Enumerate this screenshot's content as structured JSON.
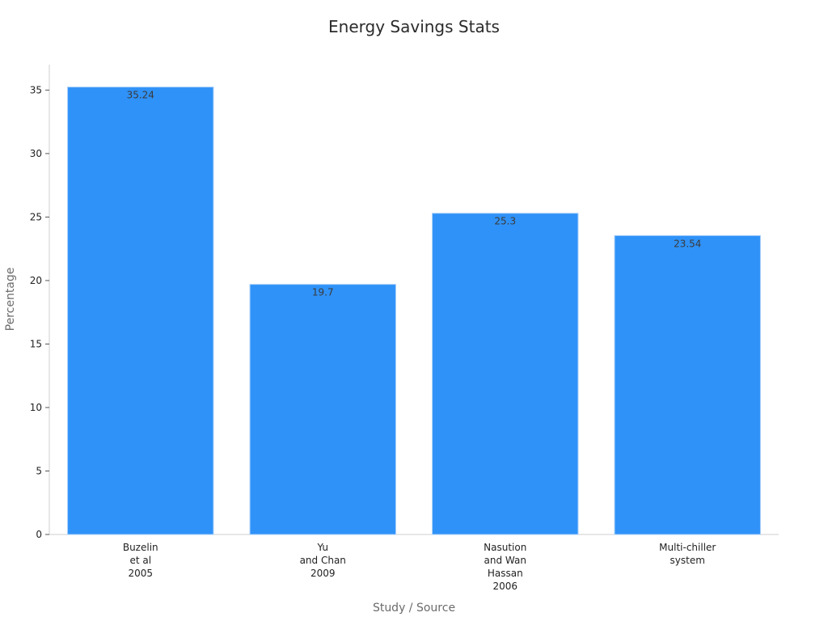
{
  "chart_data": {
    "type": "bar",
    "title": "Energy Savings Stats",
    "xlabel": "Study / Source",
    "ylabel": "Percentage",
    "categories": [
      [
        "Buzelin",
        "et al",
        "2005"
      ],
      [
        "Yu",
        "and Chan",
        "2009"
      ],
      [
        "Nasution",
        "and Wan",
        "Hassan",
        "2006"
      ],
      [
        "Multi-chiller",
        "system"
      ]
    ],
    "values": [
      35.24,
      19.7,
      25.3,
      23.54
    ],
    "value_labels": [
      "35.24",
      "19.7",
      "25.3",
      "23.54"
    ],
    "ylim": [
      0,
      37
    ],
    "yticks": [
      0,
      5,
      10,
      15,
      20,
      25,
      30,
      35
    ],
    "grid": false,
    "legend": "none",
    "bar_color": "#2f92f8"
  }
}
